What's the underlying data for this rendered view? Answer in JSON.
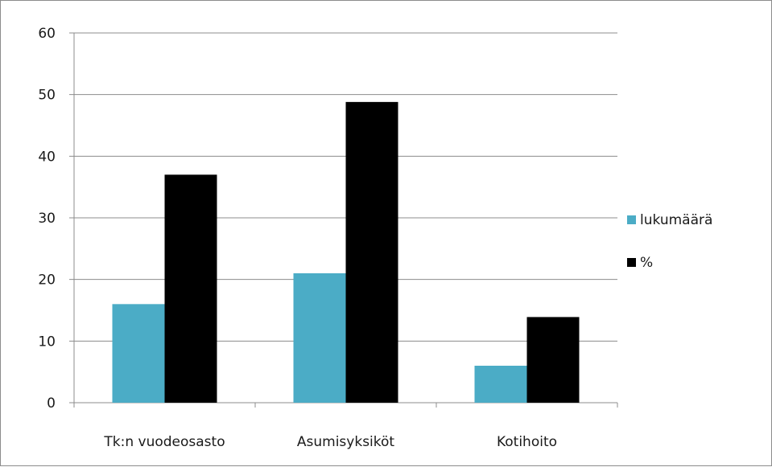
{
  "chart_data": {
    "type": "bar",
    "categories": [
      "Tk:n vuodeosasto",
      "Asumisyksiköt",
      "Kotihoito"
    ],
    "series": [
      {
        "name": "lukumäärä",
        "values": [
          16,
          21,
          6
        ],
        "color": "#4bacc6"
      },
      {
        "name": "%",
        "values": [
          37,
          48.8,
          13.9
        ],
        "color": "#000000"
      }
    ],
    "ylim": [
      0,
      60
    ],
    "yticks": [
      0,
      10,
      20,
      30,
      40,
      50,
      60
    ],
    "grid": true,
    "legend_position": "right"
  }
}
